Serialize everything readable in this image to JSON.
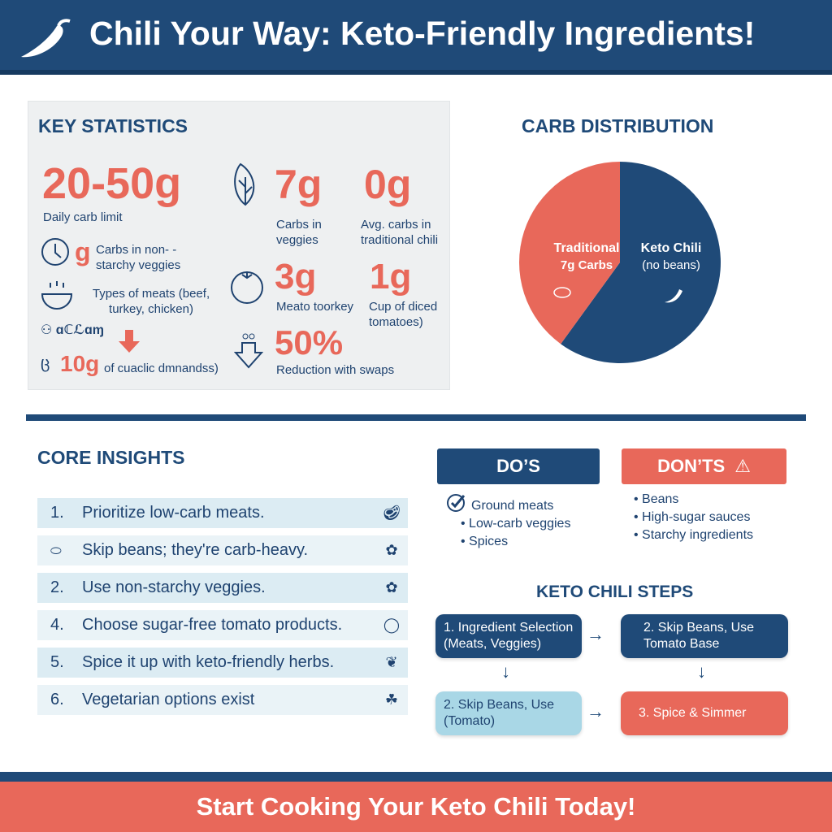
{
  "header": {
    "title": "Chili Your Way: Keto-Friendly Ingredients!",
    "icon": "chili-pepper-icon"
  },
  "stats": {
    "title": "KEY STATISTICS",
    "items": [
      {
        "value": "20-50g",
        "label": "Daily carb limit"
      },
      {
        "value": "g",
        "label": "Carbs in non- -starchy veggies",
        "icon": "clock-icon"
      },
      {
        "value": "",
        "label": "Types of meats (beef, turkey, chicken)",
        "icon": "bowl-icon"
      },
      {
        "value": "10g",
        "label": "of cuaclic dmnandss)",
        "icon": "down-arrow-icon"
      },
      {
        "value": "7g",
        "label": "Carbs in veggies",
        "icon": "leaf-icon"
      },
      {
        "value": "0g",
        "label": "Avg. carbs in traditional chili"
      },
      {
        "value": "3g",
        "label": "Meato toorkey",
        "icon": "tomato-icon"
      },
      {
        "value": "1g",
        "label": "Cup of diced tomatoes)"
      },
      {
        "value": "50%",
        "label": "Reduction with swaps",
        "icon": "reduce-arrow-icon"
      }
    ]
  },
  "chart_data": {
    "type": "pie",
    "title": "CARB DISTRIBUTION",
    "slices": [
      {
        "label": "Keto Chili",
        "sublabel": "(no beans)",
        "value": 60,
        "color": "#1f4a78"
      },
      {
        "label": "Traditional",
        "sublabel": "7g Carbs",
        "value": 40,
        "color": "#e8685a"
      }
    ]
  },
  "insights": {
    "title": "CORE INSIGHTS",
    "rows": [
      {
        "num": "1.",
        "text": "Prioritize low-carb meats.",
        "icon": "steak-icon"
      },
      {
        "num": "",
        "text": "Skip beans; they're carb-heavy.",
        "icon": "broccoli-icon",
        "lead_icon": "steak-icon"
      },
      {
        "num": "2.",
        "text": "Use non-starchy veggies.",
        "icon": "broccoli-icon"
      },
      {
        "num": "4.",
        "text": "Choose sugar-free tomato products.",
        "icon": "tomato-icon"
      },
      {
        "num": "5.",
        "text": "Spice it up with keto-friendly herbs.",
        "icon": "herb-icon"
      },
      {
        "num": "6.",
        "text": "Vegetarian options exist",
        "icon": "sprout-icon"
      }
    ]
  },
  "dos": {
    "title": "DO’S",
    "items": [
      "Ground meats",
      "Low-carb veggies",
      "Spices"
    ]
  },
  "donts": {
    "title": "DON’TS",
    "items": [
      "Beans",
      "High-sugar sauces",
      "Starchy ingredients"
    ]
  },
  "steps": {
    "title": "KETO CHILI STEPS",
    "boxes": [
      {
        "line1": "1. Ingredient Selection",
        "line2": "(Meats, Veggies)"
      },
      {
        "line1": "2. Skip Beans, Use",
        "line2": "Tomato Base"
      },
      {
        "line1": "2. Skip Beans, Use",
        "line2": "(Tomato)"
      },
      {
        "line1": "3. Spice & Simmer",
        "line2": ""
      }
    ]
  },
  "footer": {
    "cta": "Start Cooking Your Keto Chili Today!"
  },
  "colors": {
    "navy": "#1f4a78",
    "coral": "#e8685a",
    "light_blue": "#a9d7e6"
  }
}
